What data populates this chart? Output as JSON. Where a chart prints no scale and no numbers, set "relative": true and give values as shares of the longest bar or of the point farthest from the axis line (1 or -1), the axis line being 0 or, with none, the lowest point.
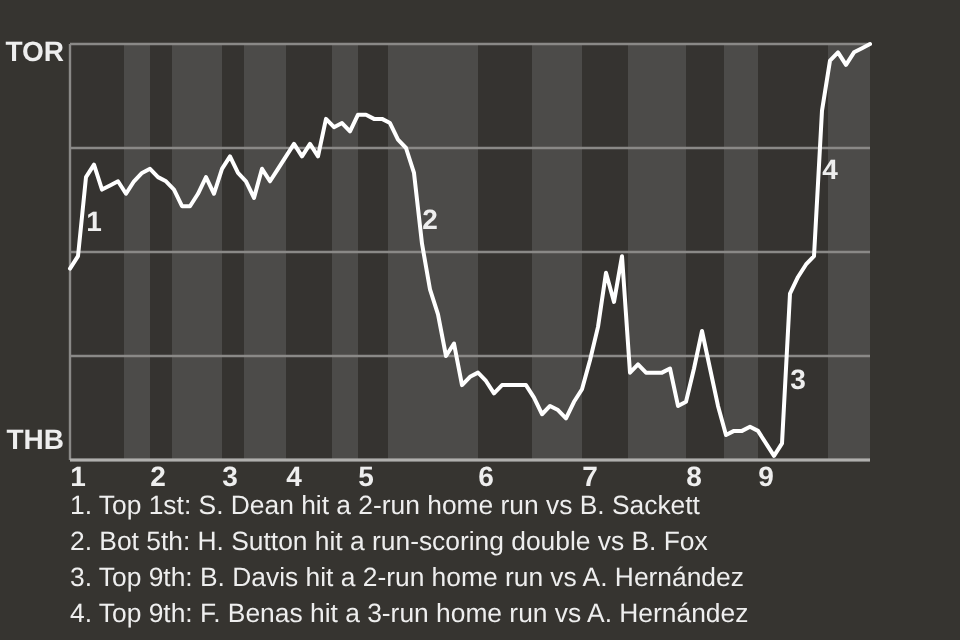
{
  "chart_data": {
    "type": "line",
    "relative": true,
    "categories": [
      null,
      "1",
      null,
      null,
      null,
      null,
      null,
      null,
      null,
      null,
      null,
      "2",
      null,
      null,
      null,
      null,
      null,
      null,
      null,
      null,
      "3",
      null,
      null,
      null,
      null,
      null,
      null,
      null,
      "4",
      null,
      null,
      null,
      null,
      null,
      null,
      null,
      null,
      "5",
      null,
      null,
      null,
      null,
      null,
      null,
      null,
      null,
      null,
      null,
      null,
      null,
      null,
      null,
      "6",
      null,
      null,
      null,
      null,
      null,
      null,
      null,
      null,
      null,
      null,
      null,
      null,
      "7",
      null,
      null,
      null,
      null,
      null,
      null,
      null,
      null,
      null,
      null,
      null,
      null,
      "8",
      null,
      null,
      null,
      null,
      null,
      null,
      null,
      null,
      "9",
      null,
      null,
      null,
      null,
      null,
      null,
      null,
      null,
      null,
      null,
      null,
      null,
      null
    ],
    "series": [
      {
        "color": "#ffffff",
        "values": [
          0.46,
          0.49,
          0.68,
          0.71,
          0.65,
          0.66,
          0.67,
          0.64,
          0.67,
          0.69,
          0.7,
          0.68,
          0.67,
          0.65,
          0.61,
          0.61,
          0.64,
          0.68,
          0.64,
          0.7,
          0.73,
          0.69,
          0.67,
          0.63,
          0.7,
          0.67,
          0.7,
          0.73,
          0.76,
          0.73,
          0.76,
          0.73,
          0.82,
          0.8,
          0.81,
          0.79,
          0.83,
          0.83,
          0.82,
          0.82,
          0.81,
          0.77,
          0.75,
          0.69,
          0.52,
          0.41,
          0.35,
          0.25,
          0.28,
          0.18,
          0.2,
          0.21,
          0.19,
          0.16,
          0.18,
          0.18,
          0.18,
          0.18,
          0.15,
          0.11,
          0.13,
          0.12,
          0.1,
          0.14,
          0.17,
          0.24,
          0.32,
          0.45,
          0.38,
          0.49,
          0.21,
          0.23,
          0.21,
          0.21,
          0.21,
          0.22,
          0.13,
          0.14,
          0.22,
          0.31,
          0.22,
          0.13,
          0.06,
          0.07,
          0.07,
          0.08,
          0.07,
          0.04,
          0.01,
          0.04,
          0.4,
          0.44,
          0.47,
          0.49,
          0.84,
          0.96,
          0.98,
          0.95,
          0.98,
          0.99,
          1.0
        ]
      }
    ],
    "grid": "y",
    "marker": "none",
    "annotations": [
      "TOR",
      "THB",
      "1",
      "2",
      "3",
      "4",
      "1. Top 1st: S. Dean hit a 2-run home run vs B. Sackett",
      "2. Bot 5th: H. Sutton hit a run-scoring double vs B. Fox",
      "3. Top 9th: B. Davis hit a 2-run home run vs A. Hernández",
      "4. Top 9th: F. Benas hit a 3-run home run vs A. Hernández"
    ]
  }
}
